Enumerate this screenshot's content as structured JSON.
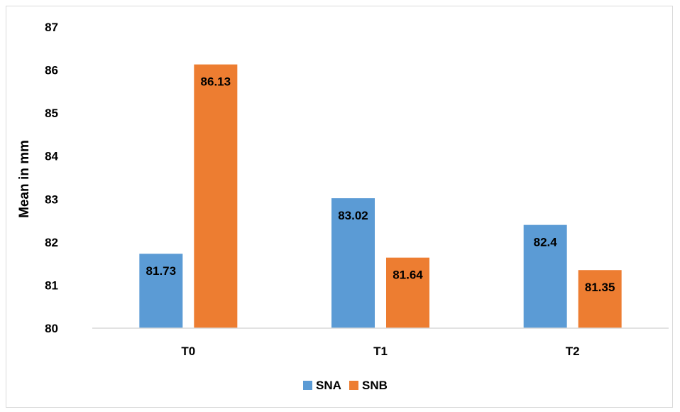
{
  "chart_data": {
    "type": "bar",
    "title": "",
    "xlabel": "",
    "ylabel": "Mean in mm",
    "ylim": [
      80,
      87
    ],
    "yticks": [
      "80",
      "81",
      "82",
      "83",
      "84",
      "85",
      "86",
      "87"
    ],
    "categories": [
      "T0",
      "T1",
      "T2"
    ],
    "series": [
      {
        "name": "SNA",
        "color": "#5b9bd5",
        "values": [
          81.73,
          83.02,
          82.4
        ],
        "labels": [
          "81.73",
          "83.02",
          "82.4"
        ]
      },
      {
        "name": "SNB",
        "color": "#ed7d31",
        "values": [
          86.13,
          81.64,
          81.35
        ],
        "labels": [
          "86.13",
          "81.64",
          "81.35"
        ]
      }
    ],
    "grid": false,
    "legend_position": "bottom"
  }
}
